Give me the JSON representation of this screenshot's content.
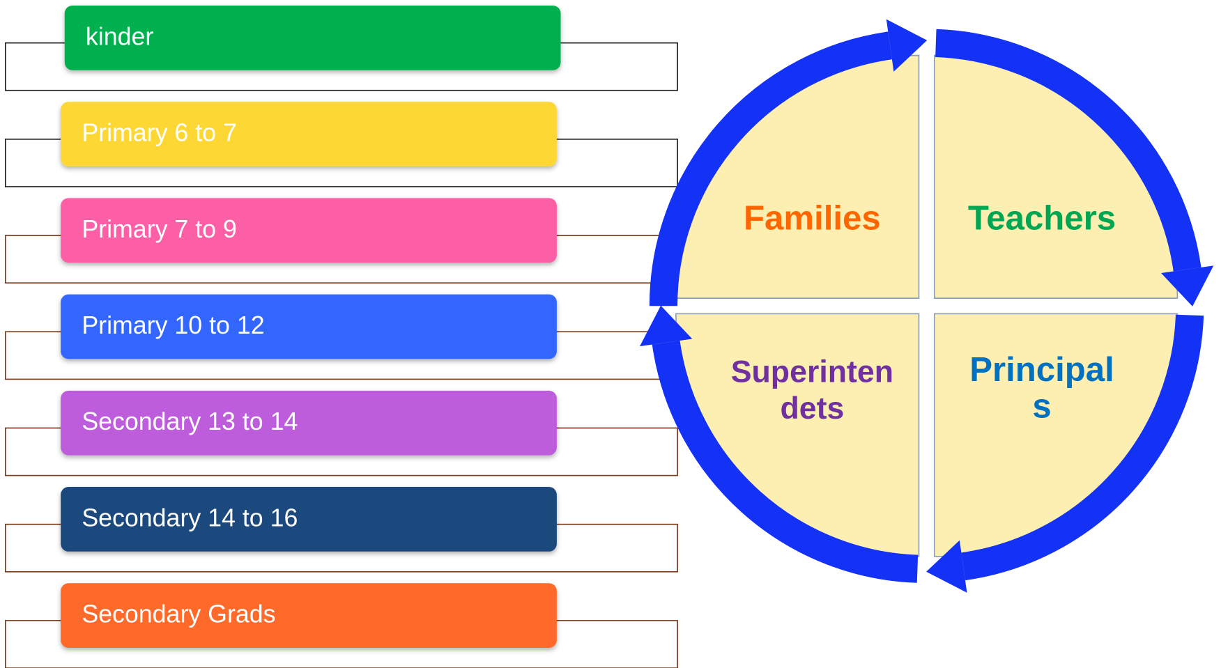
{
  "levels": [
    {
      "label": "kinder",
      "color": "#00b050"
    },
    {
      "label": "Primary 6 to 7",
      "color": "#fdd835"
    },
    {
      "label": "Primary 7 to 9",
      "color": "#fc5fa5"
    },
    {
      "label": "Primary 10 to 12",
      "color": "#3366ff"
    },
    {
      "label": "Secondary 13 to 14",
      "color": "#be5ddc"
    },
    {
      "label": "Secondary 14 to 16",
      "color": "#1f497d"
    },
    {
      "label": "Secondary Grads",
      "color": "#ff6a2a"
    }
  ],
  "cycle": [
    {
      "lines": [
        "Families"
      ],
      "color": "#ff6600"
    },
    {
      "lines": [
        "Teachers"
      ],
      "color": "#00a651"
    },
    {
      "lines": [
        "Principal",
        "s"
      ],
      "color": "#0070c0"
    },
    {
      "lines": [
        "Superinten",
        "dets"
      ],
      "color": "#7030a0"
    }
  ]
}
